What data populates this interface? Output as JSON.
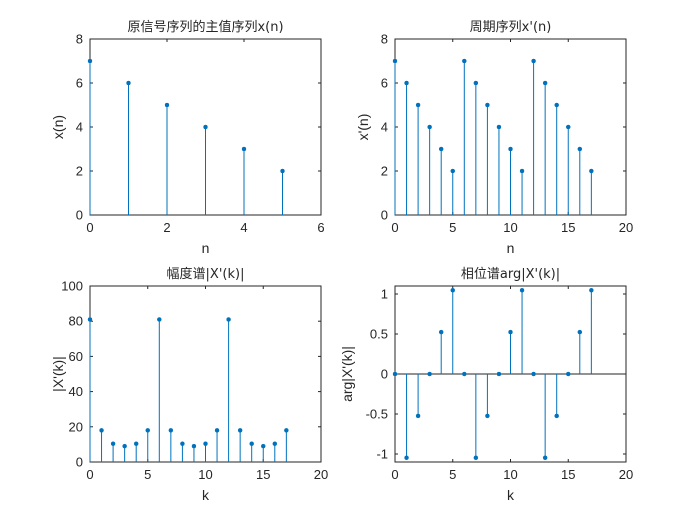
{
  "colors": {
    "stem": "#0072bd",
    "axis": "#262626",
    "background": "#ffffff"
  },
  "chart_data": [
    {
      "type": "stem",
      "title": "原信号序列的主值序列x(n)",
      "xlabel": "n",
      "ylabel": "x(n)",
      "xlim": [
        0,
        6
      ],
      "ylim": [
        0,
        8
      ],
      "xticks": [
        0,
        2,
        4,
        6
      ],
      "yticks": [
        0,
        2,
        4,
        6,
        8
      ],
      "x": [
        0,
        1,
        2,
        3,
        4,
        5
      ],
      "values": [
        7,
        6,
        5,
        4,
        3,
        2
      ]
    },
    {
      "type": "stem",
      "title": "周期序列x'(n)",
      "xlabel": "n",
      "ylabel": "x'(n)",
      "xlim": [
        0,
        20
      ],
      "ylim": [
        0,
        8
      ],
      "xticks": [
        0,
        5,
        10,
        15,
        20
      ],
      "yticks": [
        0,
        2,
        4,
        6,
        8
      ],
      "x": [
        0,
        1,
        2,
        3,
        4,
        5,
        6,
        7,
        8,
        9,
        10,
        11,
        12,
        13,
        14,
        15,
        16,
        17
      ],
      "values": [
        7,
        6,
        5,
        4,
        3,
        2,
        7,
        6,
        5,
        4,
        3,
        2,
        7,
        6,
        5,
        4,
        3,
        2
      ]
    },
    {
      "type": "stem",
      "title": "幅度谱|X'(k)|",
      "xlabel": "k",
      "ylabel": "|X'(k)|",
      "xlim": [
        0,
        20
      ],
      "ylim": [
        0,
        100
      ],
      "xticks": [
        0,
        5,
        10,
        15,
        20
      ],
      "yticks": [
        0,
        20,
        40,
        60,
        80,
        100
      ],
      "x": [
        0,
        1,
        2,
        3,
        4,
        5,
        6,
        7,
        8,
        9,
        10,
        11,
        12,
        13,
        14,
        15,
        16,
        17
      ],
      "values": [
        81,
        18,
        10.4,
        9,
        10.4,
        18,
        81,
        18,
        10.4,
        9,
        10.4,
        18,
        81,
        18,
        10.4,
        9,
        10.4,
        18
      ]
    },
    {
      "type": "stem",
      "title": "相位谱arg|X'(k)|",
      "xlabel": "k",
      "ylabel": "arg|X'(k)|",
      "xlim": [
        0,
        20
      ],
      "ylim": [
        -1.1,
        1.1
      ],
      "xticks": [
        0,
        5,
        10,
        15,
        20
      ],
      "yticks": [
        -1,
        -0.5,
        0,
        0.5,
        1
      ],
      "zero_line": true,
      "x": [
        0,
        1,
        2,
        3,
        4,
        5,
        6,
        7,
        8,
        9,
        10,
        11,
        12,
        13,
        14,
        15,
        16,
        17
      ],
      "values": [
        0,
        -1.047,
        -0.524,
        0,
        0.524,
        1.047,
        0,
        -1.047,
        -0.524,
        0,
        0.524,
        1.047,
        0,
        -1.047,
        -0.524,
        0,
        0.524,
        1.047
      ]
    }
  ]
}
